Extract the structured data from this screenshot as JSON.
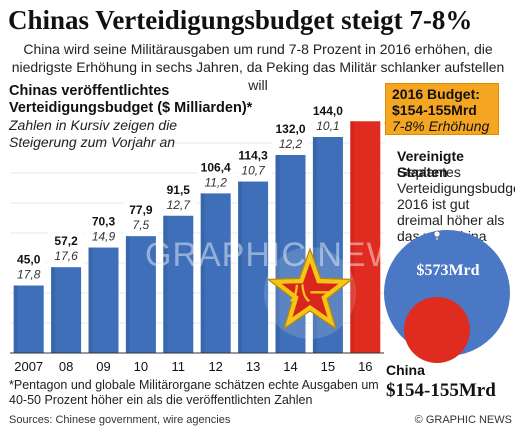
{
  "title": "Chinas Verteidigungsbudget steigt 7-8%",
  "subtitle": "China wird seine Militärausgaben um rund 7-8 Prozent in 2016 erhöhen, die niedrigste Erhöhung in sechs Jahren, da Peking das Militär schlanker aufstellen will",
  "chart_data": {
    "type": "bar",
    "title": "Chinas veröffentlichtes Verteidigungsbudget ($ Milliarden)*",
    "note": "Zahlen in Kursiv zeigen die Steigerung zum Vorjahr an",
    "categories": [
      "2007",
      "08",
      "09",
      "10",
      "11",
      "12",
      "13",
      "14",
      "15",
      "16"
    ],
    "series": [
      {
        "values": [
          45.0,
          57.2,
          70.3,
          77.9,
          91.5,
          106.4,
          114.3,
          132.0,
          144.0,
          154.5
        ]
      }
    ],
    "value_labels": [
      "45,0",
      "57,2",
      "70,3",
      "77,9",
      "91,5",
      "106,4",
      "114,3",
      "132,0",
      "144,0",
      ""
    ],
    "increase_labels": [
      "17,8",
      "17,6",
      "14,9",
      "7,5",
      "12,7",
      "11,2",
      "10,7",
      "12,2",
      "10,1",
      ""
    ],
    "ylim": [
      0,
      160
    ],
    "colors": {
      "bar": "#3e6fb8",
      "bar_dark": "#2a558f",
      "highlight": "#e02b20",
      "label_bg": "#dbe7f5"
    }
  },
  "budget_box": {
    "line1": "2016 Budget:",
    "line2": "$154-155Mrd",
    "line3": "7-8% Erhöhung"
  },
  "comparison": {
    "us_title": "Vereinigte Staaten",
    "us_note": "Geplantes Verteidigungsbudget 2016 ist gut dreimal höher als das von China",
    "us_value": "$573Mrd",
    "china_name": "China",
    "china_value": "$154-155Mrd",
    "us_color": "#4a78c4",
    "china_color": "#e02b20"
  },
  "footnote": "*Pentagon und globale Militärorgane schätzen echte Ausgaben um 40-50 Prozent höher ein als die veröffentlichten Zahlen",
  "source": "Sources: Chinese government, wire agencies",
  "credit": "© GRAPHIC NEWS",
  "watermark": "GRAPHIC NEWS"
}
